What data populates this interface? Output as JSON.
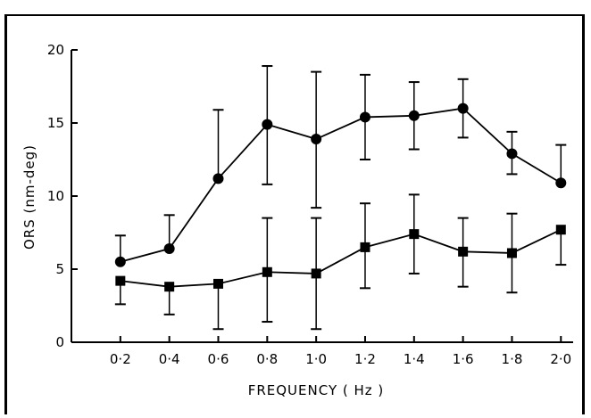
{
  "chart_data": {
    "type": "line",
    "title": "",
    "xlabel": "FREQUENCY ( Hz )",
    "ylabel": "ORS (nm-deg)",
    "x": [
      0.2,
      0.4,
      0.6,
      0.8,
      1.0,
      1.2,
      1.4,
      1.6,
      1.8,
      2.0
    ],
    "x_tick_labels": [
      "0·2",
      "0·4",
      "0·6",
      "0·8",
      "1·0",
      "1·2",
      "1·4",
      "1·6",
      "1·8",
      "2·0"
    ],
    "y_ticks": [
      0,
      5,
      10,
      15,
      20
    ],
    "y_tick_labels": [
      "0",
      "5",
      "10",
      "15",
      "20"
    ],
    "xlim": [
      0.0,
      2.05
    ],
    "ylim": [
      0,
      20
    ],
    "grid": false,
    "legend": "none",
    "series": [
      {
        "marker": "circle",
        "values": [
          5.5,
          6.4,
          11.2,
          14.9,
          13.9,
          15.4,
          15.5,
          16.0,
          12.9,
          10.9
        ],
        "err_upper": [
          7.3,
          8.7,
          15.9,
          18.9,
          18.5,
          18.3,
          17.8,
          18.0,
          14.4,
          13.5
        ],
        "err_lower": [
          null,
          null,
          null,
          10.8,
          9.2,
          12.5,
          13.2,
          14.0,
          11.5,
          null
        ]
      },
      {
        "marker": "square",
        "values": [
          4.2,
          3.8,
          4.0,
          4.8,
          4.7,
          6.5,
          7.4,
          6.2,
          6.1,
          7.7
        ],
        "err_upper": [
          null,
          null,
          null,
          8.5,
          8.5,
          9.5,
          10.1,
          8.5,
          8.8,
          null
        ],
        "err_lower": [
          2.6,
          1.9,
          0.9,
          1.4,
          0.9,
          3.7,
          4.7,
          3.8,
          3.4,
          5.3
        ]
      }
    ]
  }
}
